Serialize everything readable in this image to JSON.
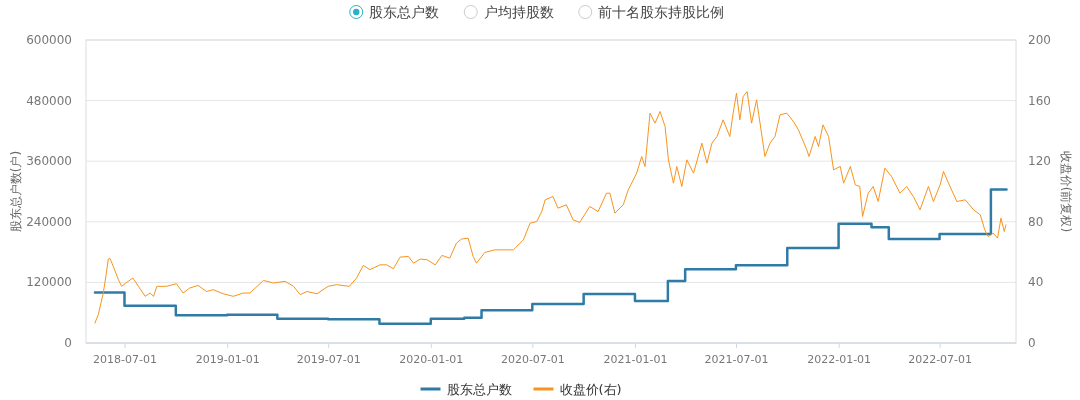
{
  "chart_data": {
    "type": "line",
    "ylabel": "股东总户数(户)",
    "y2label": "收盘价(前复权)",
    "annotations": [
      "股东总户数",
      "户均持股数",
      "前十名股东持股比例"
    ],
    "xlim": [
      "2018-04-22",
      "2022-11-14"
    ],
    "xticks": [
      "2018-07-01",
      "2019-01-01",
      "2019-07-01",
      "2020-01-01",
      "2020-07-01",
      "2021-01-01",
      "2021-07-01",
      "2022-01-01",
      "2022-07-01"
    ],
    "ylim": [
      0,
      600000
    ],
    "yticks": [
      0,
      120000,
      240000,
      360000,
      480000,
      600000
    ],
    "y2lim": [
      0,
      200
    ],
    "y2ticks": [
      0,
      40,
      80,
      120,
      160,
      200
    ],
    "grid": "y",
    "legend": "bottom",
    "series": [
      {
        "name": "股东总户数",
        "type": "step",
        "color": "#2f7ba6",
        "x": [
          "2018-05-08",
          "2018-06-30",
          "2018-09-30",
          "2018-12-31",
          "2019-03-31",
          "2019-06-30",
          "2019-09-30",
          "2019-12-31",
          "2020-02-29",
          "2020-03-31",
          "2020-06-30",
          "2020-09-30",
          "2020-12-31",
          "2021-02-28",
          "2021-03-31",
          "2021-06-30",
          "2021-09-30",
          "2021-12-31",
          "2022-02-28",
          "2022-03-31",
          "2022-06-30",
          "2022-09-30",
          "2022-10-28"
        ],
        "values": [
          100000,
          74000,
          55000,
          56000,
          48000,
          47000,
          38000,
          48000,
          50000,
          65000,
          77000,
          97000,
          83000,
          123000,
          146000,
          154000,
          188000,
          236000,
          229000,
          206000,
          216000,
          304000,
          304000
        ]
      },
      {
        "name": "收盘价(右)",
        "axis": "y2",
        "color": "#f7941d",
        "x": [
          "2018-05-08",
          "2018-05-14",
          "2018-05-23",
          "2018-05-28",
          "2018-06-01",
          "2018-06-04",
          "2018-06-10",
          "2018-06-19",
          "2018-06-25",
          "2018-07-04",
          "2018-07-15",
          "2018-07-25",
          "2018-08-06",
          "2018-08-15",
          "2018-08-21",
          "2018-08-27",
          "2018-09-13",
          "2018-10-01",
          "2018-10-13",
          "2018-10-25",
          "2018-11-09",
          "2018-11-24",
          "2018-12-06",
          "2018-12-24",
          "2019-01-11",
          "2019-01-29",
          "2019-02-10",
          "2019-03-06",
          "2019-03-24",
          "2019-04-14",
          "2019-04-29",
          "2019-05-11",
          "2019-05-23",
          "2019-06-10",
          "2019-06-30",
          "2019-07-15",
          "2019-08-07",
          "2019-08-20",
          "2019-09-01",
          "2019-09-13",
          "2019-10-01",
          "2019-10-13",
          "2019-10-25",
          "2019-11-06",
          "2019-11-21",
          "2019-11-30",
          "2019-12-12",
          "2019-12-24",
          "2020-01-08",
          "2020-01-20",
          "2020-02-03",
          "2020-02-15",
          "2020-02-24",
          "2020-03-07",
          "2020-03-16",
          "2020-03-22",
          "2020-04-06",
          "2020-04-24",
          "2020-05-12",
          "2020-05-27",
          "2020-06-14",
          "2020-06-26",
          "2020-07-08",
          "2020-07-17",
          "2020-07-23",
          "2020-08-06",
          "2020-08-15",
          "2020-08-30",
          "2020-09-11",
          "2020-09-23",
          "2020-10-11",
          "2020-10-26",
          "2020-11-10",
          "2020-11-16",
          "2020-11-25",
          "2020-12-10",
          "2020-12-19",
          "2021-01-03",
          "2021-01-12",
          "2021-01-18",
          "2021-01-27",
          "2021-02-05",
          "2021-02-14",
          "2021-02-23",
          "2021-03-01",
          "2021-03-10",
          "2021-03-16",
          "2021-03-25",
          "2021-04-03",
          "2021-04-15",
          "2021-04-30",
          "2021-05-09",
          "2021-05-18",
          "2021-05-27",
          "2021-06-07",
          "2021-06-19",
          "2021-06-25",
          "2021-07-01",
          "2021-07-07",
          "2021-07-13",
          "2021-07-20",
          "2021-07-28",
          "2021-08-06",
          "2021-08-21",
          "2021-08-30",
          "2021-09-08",
          "2021-09-17",
          "2021-09-29",
          "2021-10-11",
          "2021-10-20",
          "2021-11-04",
          "2021-11-08",
          "2021-11-19",
          "2021-11-25",
          "2021-12-03",
          "2021-12-13",
          "2021-12-22",
          "2022-01-03",
          "2022-01-09",
          "2022-01-21",
          "2022-01-30",
          "2022-02-07",
          "2022-02-12",
          "2022-02-22",
          "2022-03-03",
          "2022-03-12",
          "2022-03-24",
          "2022-04-05",
          "2022-04-20",
          "2022-05-02",
          "2022-05-14",
          "2022-05-26",
          "2022-06-10",
          "2022-06-19",
          "2022-07-01",
          "2022-07-07",
          "2022-07-16",
          "2022-07-31",
          "2022-08-15",
          "2022-08-30",
          "2022-09-11",
          "2022-09-19",
          "2022-09-25",
          "2022-10-04",
          "2022-10-12",
          "2022-10-18",
          "2022-10-24",
          "2022-10-27"
        ],
        "values": [
          13.2,
          18.7,
          33,
          45,
          55.4,
          55.8,
          50.5,
          41.8,
          37.4,
          40,
          42.9,
          37.4,
          30.8,
          33,
          30.8,
          37.4,
          37.4,
          39.1,
          33,
          36.3,
          38,
          34,
          35.2,
          32.5,
          30.8,
          33,
          33,
          41.3,
          39.6,
          40.7,
          37.4,
          31.9,
          34,
          32.5,
          37.4,
          38.5,
          37.4,
          42.9,
          51.2,
          48.4,
          51.6,
          51.6,
          49,
          56.7,
          57.1,
          52.7,
          55.4,
          55,
          51.6,
          57.8,
          56,
          65.9,
          68.6,
          69.2,
          57.1,
          52.7,
          59.8,
          61.5,
          61.5,
          61.5,
          68.1,
          79.1,
          80.2,
          86.8,
          94.5,
          96.7,
          89,
          91.2,
          81.3,
          79.6,
          90.1,
          86.8,
          98.9,
          98.9,
          85.7,
          91.2,
          101.1,
          112.1,
          123.1,
          116.5,
          151.7,
          145.1,
          152.8,
          142.9,
          120.9,
          105.5,
          116.5,
          103.3,
          120.9,
          112.1,
          131.9,
          118.7,
          131.9,
          136.3,
          147.3,
          136.3,
          151.7,
          164.9,
          147.3,
          162.7,
          166,
          145.1,
          160.5,
          123.1,
          131.9,
          136.3,
          150.6,
          151.7,
          146.2,
          140.7,
          127.5,
          123.1,
          136.3,
          129.7,
          144,
          136.3,
          114.3,
          116.5,
          105.5,
          116.5,
          104.4,
          103.3,
          83.5,
          98.9,
          103.3,
          93.4,
          115.4,
          109.9,
          98.9,
          103.3,
          96.7,
          87.9,
          103.3,
          93.4,
          104.4,
          113.2,
          105.5,
          93.4,
          94.5,
          87.9,
          84.6,
          74.7,
          70.3,
          72.5,
          69.2,
          82.4,
          73.6,
          78
        ]
      }
    ]
  }
}
